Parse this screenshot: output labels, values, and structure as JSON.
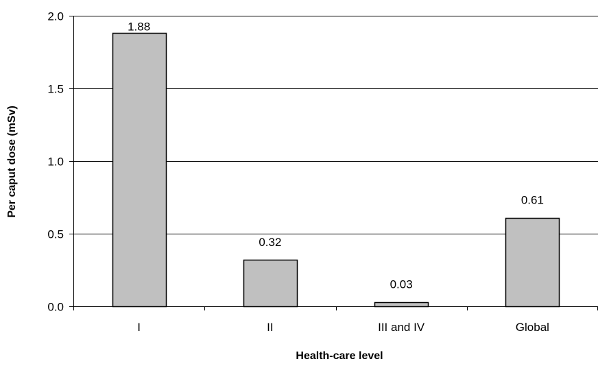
{
  "chart_data": {
    "type": "bar",
    "title": "",
    "xlabel": "Health-care level",
    "ylabel": "Per caput dose (mSv)",
    "categories": [
      "I",
      "II",
      "III and IV",
      "Global"
    ],
    "values": [
      1.88,
      0.32,
      0.03,
      0.61
    ],
    "data_labels": [
      "1.88",
      "0.32",
      "0.03",
      "0.61"
    ],
    "ylim": [
      0,
      2.0
    ],
    "yticks": [
      0.0,
      0.5,
      1.0,
      1.5,
      2.0
    ],
    "ytick_labels": [
      "0.0",
      "0.5",
      "1.0",
      "1.5",
      "2.0"
    ],
    "grid": true,
    "bar_color": "#c0c0c0",
    "bar_edge_color": "#000000"
  }
}
